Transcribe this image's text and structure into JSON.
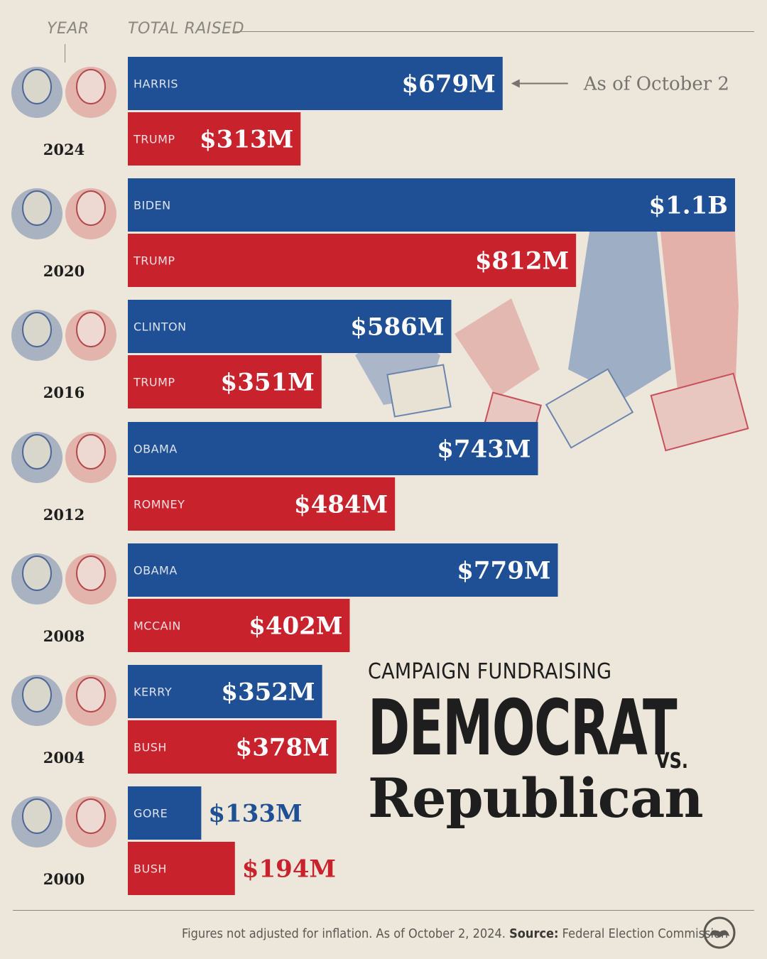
{
  "header": {
    "year_label": "YEAR",
    "total_label": "TOTAL RAISED"
  },
  "title": {
    "subtitle": "CAMPAIGN FUNDRAISING",
    "line1": "DEMOCRAT",
    "vs": "VS.",
    "line2": "Republican"
  },
  "annotation": "As of October 2",
  "footer": {
    "note": "Figures not adjusted for inflation. As of October 2, 2024.",
    "source_label": "Source:",
    "source": "Federal Election Commission"
  },
  "colors": {
    "democrat": "#1f4f95",
    "republican": "#c8232d",
    "background": "#ede6da",
    "text": "#1e1e1e"
  },
  "icons": [
    "candidate-portrait-icon",
    "hand-with-dollar-bills-illustration",
    "publisher-logo-icon",
    "arrow-left-icon"
  ],
  "chart_data": {
    "type": "bar",
    "orientation": "horizontal",
    "ylabel": "TOTAL RAISED",
    "xlabel": "YEAR",
    "unit": "USD millions",
    "groups": [
      {
        "year": "2024",
        "dem": {
          "name": "HARRIS",
          "value": 679,
          "label": "$679M"
        },
        "rep": {
          "name": "TRUMP",
          "value": 313,
          "label": "$313M"
        }
      },
      {
        "year": "2020",
        "dem": {
          "name": "BIDEN",
          "value": 1100,
          "label": "$1.1B"
        },
        "rep": {
          "name": "TRUMP",
          "value": 812,
          "label": "$812M"
        }
      },
      {
        "year": "2016",
        "dem": {
          "name": "CLINTON",
          "value": 586,
          "label": "$586M"
        },
        "rep": {
          "name": "TRUMP",
          "value": 351,
          "label": "$351M"
        }
      },
      {
        "year": "2012",
        "dem": {
          "name": "OBAMA",
          "value": 743,
          "label": "$743M"
        },
        "rep": {
          "name": "ROMNEY",
          "value": 484,
          "label": "$484M"
        }
      },
      {
        "year": "2008",
        "dem": {
          "name": "OBAMA",
          "value": 779,
          "label": "$779M"
        },
        "rep": {
          "name": "MCCAIN",
          "value": 402,
          "label": "$402M"
        }
      },
      {
        "year": "2004",
        "dem": {
          "name": "KERRY",
          "value": 352,
          "label": "$352M"
        },
        "rep": {
          "name": "BUSH",
          "value": 378,
          "label": "$378M"
        }
      },
      {
        "year": "2000",
        "dem": {
          "name": "GORE",
          "value": 133,
          "label": "$133M"
        },
        "rep": {
          "name": "BUSH",
          "value": 194,
          "label": "$194M"
        }
      }
    ]
  }
}
